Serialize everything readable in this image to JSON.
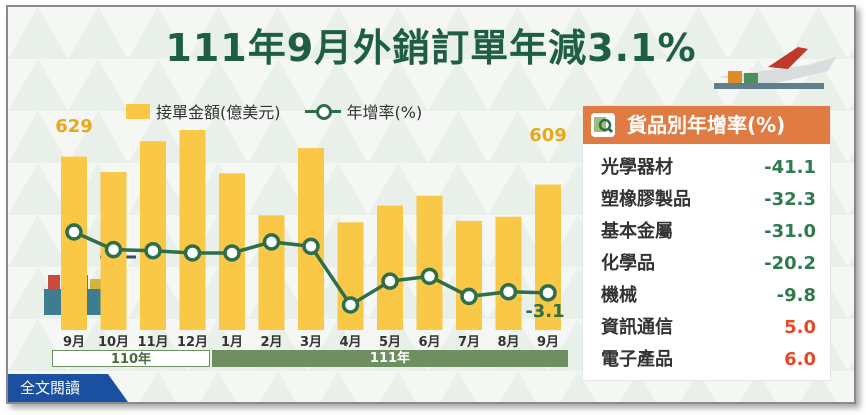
{
  "title": "111年9月外銷訂單年減3.1%",
  "legend": {
    "bar_label": "接單金額(億美元)",
    "line_label": "年增率(%)"
  },
  "colors": {
    "bar": "#f8c846",
    "line": "#2e6e4a",
    "title": "#1e5e45",
    "panel_header": "#e17b44",
    "negative": "#2e7a4e",
    "positive": "#e34a2a"
  },
  "chart_data": {
    "type": "bar",
    "categories": [
      "9月",
      "10月",
      "11月",
      "12月",
      "1月",
      "2月",
      "3月",
      "4月",
      "5月",
      "6月",
      "7月",
      "8月",
      "9月"
    ],
    "series": [
      {
        "name": "接單金額(億美元)",
        "type": "bar",
        "values": [
          629,
          618,
          640,
          648,
          617,
          587,
          635,
          582,
          594,
          601,
          583,
          586,
          609
        ]
      },
      {
        "name": "年增率(%)",
        "type": "line",
        "values": [
          24.5,
          16.5,
          16.0,
          15.0,
          15.0,
          20.0,
          18.0,
          -8.6,
          2.2,
          4.4,
          -4.7,
          -2.6,
          -3.1
        ]
      }
    ],
    "data_labels": {
      "first_bar": "629",
      "last_bar": "609",
      "last_rate": "-3.1"
    },
    "year_groups": [
      {
        "label": "110年",
        "span": 4
      },
      {
        "label": "111年",
        "span": 9
      }
    ]
  },
  "panel": {
    "title": "貨品別年增率(%)",
    "rows": [
      {
        "name": "光學器材",
        "value": "-41.1"
      },
      {
        "name": "塑橡膠製品",
        "value": "-32.3"
      },
      {
        "name": "基本金屬",
        "value": "-31.0"
      },
      {
        "name": "化學品",
        "value": "-20.2"
      },
      {
        "name": "機械",
        "value": "-9.8"
      },
      {
        "name": "資訊通信",
        "value": "5.0"
      },
      {
        "name": "電子產品",
        "value": "6.0"
      }
    ]
  },
  "fulltext_button": "全文閱讀"
}
